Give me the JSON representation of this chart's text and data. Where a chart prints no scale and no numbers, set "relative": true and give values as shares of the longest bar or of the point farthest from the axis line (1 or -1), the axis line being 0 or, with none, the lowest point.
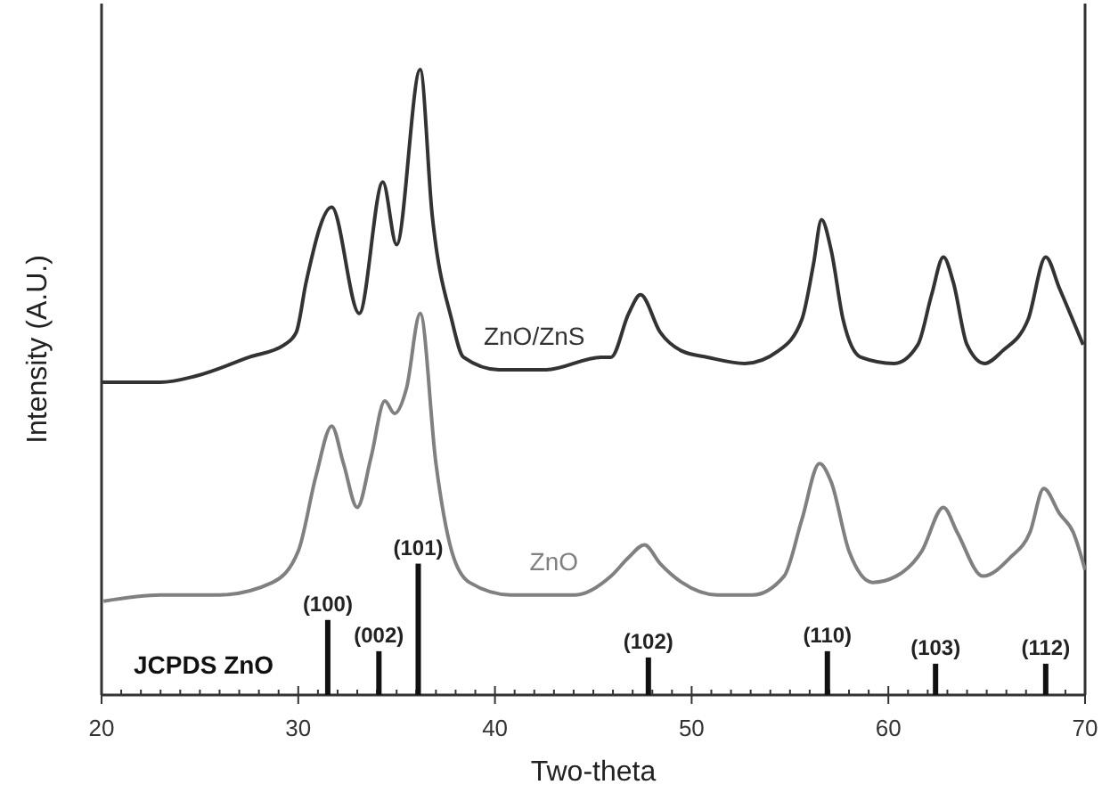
{
  "chart_data": {
    "type": "line",
    "xlabel": "Two-theta",
    "ylabel": "Intensity (A.U.)",
    "relative": true,
    "xlim": [
      20,
      70
    ],
    "xticks": [
      20,
      {
        "value": 21,
        "label": null
      },
      {
        "value": 22,
        "label": null
      },
      {
        "value": 23,
        "label": null
      },
      {
        "value": 24,
        "label": null
      },
      {
        "value": 25,
        "label": null
      },
      {
        "value": 26,
        "label": null
      },
      {
        "value": 27,
        "label": null
      },
      {
        "value": 28,
        "label": null
      },
      {
        "value": 29,
        "label": null
      },
      30,
      {
        "value": 31,
        "label": null
      },
      {
        "value": 32,
        "label": null
      },
      {
        "value": 33,
        "label": null
      },
      {
        "value": 34,
        "label": null
      },
      {
        "value": 35,
        "label": null
      },
      {
        "value": 36,
        "label": null
      },
      {
        "value": 37,
        "label": null
      },
      {
        "value": 38,
        "label": null
      },
      {
        "value": 39,
        "label": null
      },
      40,
      {
        "value": 41,
        "label": null
      },
      {
        "value": 42,
        "label": null
      },
      {
        "value": 43,
        "label": null
      },
      {
        "value": 44,
        "label": null
      },
      {
        "value": 45,
        "label": null
      },
      {
        "value": 46,
        "label": null
      },
      {
        "value": 47,
        "label": null
      },
      {
        "value": 48,
        "label": null
      },
      {
        "value": 49,
        "label": null
      },
      50,
      {
        "value": 51,
        "label": null
      },
      {
        "value": 52,
        "label": null
      },
      {
        "value": 53,
        "label": null
      },
      {
        "value": 54,
        "label": null
      },
      {
        "value": 55,
        "label": null
      },
      {
        "value": 56,
        "label": null
      },
      {
        "value": 57,
        "label": null
      },
      {
        "value": 58,
        "label": null
      },
      {
        "value": 59,
        "label": null
      },
      60,
      {
        "value": 61,
        "label": null
      },
      {
        "value": 62,
        "label": null
      },
      {
        "value": 63,
        "label": null
      },
      {
        "value": 64,
        "label": null
      },
      {
        "value": 65,
        "label": null
      },
      {
        "value": 66,
        "label": null
      },
      {
        "value": 67,
        "label": null
      },
      {
        "value": 68,
        "label": null
      },
      {
        "value": 69,
        "label": null
      },
      70
    ],
    "tick_labels": "x",
    "series": [
      {
        "name": "ZnO/ZnS",
        "color": "#333333",
        "x": [
          20.0,
          23.0,
          24.8,
          27.5,
          29.3,
          29.9,
          30.4,
          31.7,
          33.1,
          34.3,
          35.0,
          36.2,
          36.8,
          37.8,
          38.4,
          40.2,
          42.6,
          45.4,
          45.9,
          46.8,
          47.4,
          48.4,
          49.5,
          50.8,
          52.7,
          54.4,
          55.6,
          56.2,
          56.6,
          57.1,
          57.7,
          58.6,
          60.3,
          61.5,
          62.2,
          62.8,
          63.3,
          64.0,
          64.9,
          65.8,
          67.1,
          68.0,
          68.7,
          69.9
        ],
        "values": [
          0.5,
          0.5,
          0.51,
          0.54,
          0.56,
          0.58,
          0.66,
          0.78,
          0.61,
          0.82,
          0.72,
          1.0,
          0.77,
          0.6,
          0.54,
          0.52,
          0.52,
          0.54,
          0.54,
          0.61,
          0.64,
          0.58,
          0.55,
          0.54,
          0.53,
          0.55,
          0.6,
          0.69,
          0.76,
          0.71,
          0.6,
          0.54,
          0.53,
          0.56,
          0.64,
          0.7,
          0.66,
          0.56,
          0.53,
          0.55,
          0.6,
          0.7,
          0.65,
          0.56
        ]
      },
      {
        "name": "ZnO",
        "color": "#808080",
        "x": [
          20.1,
          23.0,
          26.0,
          28.7,
          30.0,
          30.9,
          31.7,
          32.3,
          33.0,
          33.7,
          34.4,
          34.9,
          35.5,
          36.2,
          37.0,
          37.8,
          38.7,
          40.8,
          44.1,
          45.9,
          46.8,
          47.6,
          48.4,
          49.5,
          51.3,
          53.1,
          54.7,
          55.6,
          56.5,
          57.1,
          58.0,
          59.2,
          60.4,
          61.7,
          62.8,
          63.5,
          64.8,
          66.2,
          67.2,
          67.9,
          68.7,
          69.4,
          70.0
        ],
        "values": [
          0.15,
          0.16,
          0.16,
          0.18,
          0.23,
          0.35,
          0.43,
          0.37,
          0.3,
          0.38,
          0.47,
          0.45,
          0.49,
          0.61,
          0.37,
          0.23,
          0.18,
          0.16,
          0.16,
          0.19,
          0.22,
          0.24,
          0.21,
          0.18,
          0.16,
          0.16,
          0.19,
          0.28,
          0.37,
          0.34,
          0.23,
          0.18,
          0.19,
          0.23,
          0.3,
          0.26,
          0.19,
          0.22,
          0.26,
          0.33,
          0.29,
          0.26,
          0.2
        ]
      },
      {
        "name": "JCPDS ZnO",
        "type": "bar",
        "color": "#111111",
        "x": [
          31.5,
          34.1,
          36.1,
          47.8,
          56.9,
          62.4,
          68.0
        ],
        "values": [
          0.12,
          0.07,
          0.21,
          0.06,
          0.07,
          0.05,
          0.05
        ]
      }
    ],
    "annotations": [
      {
        "text": "(100)",
        "x": 31.5,
        "y": 0.12
      },
      {
        "text": "(002)",
        "x": 34.1,
        "y": 0.07
      },
      {
        "text": "(101)",
        "x": 36.1,
        "y": 0.21
      },
      {
        "text": "(102)",
        "x": 47.8,
        "y": 0.06
      },
      {
        "text": "(110)",
        "x": 56.9,
        "y": 0.07
      },
      {
        "text": "(103)",
        "x": 62.4,
        "y": 0.05
      },
      {
        "text": "(112)",
        "x": 68.0,
        "y": 0.05
      }
    ]
  }
}
